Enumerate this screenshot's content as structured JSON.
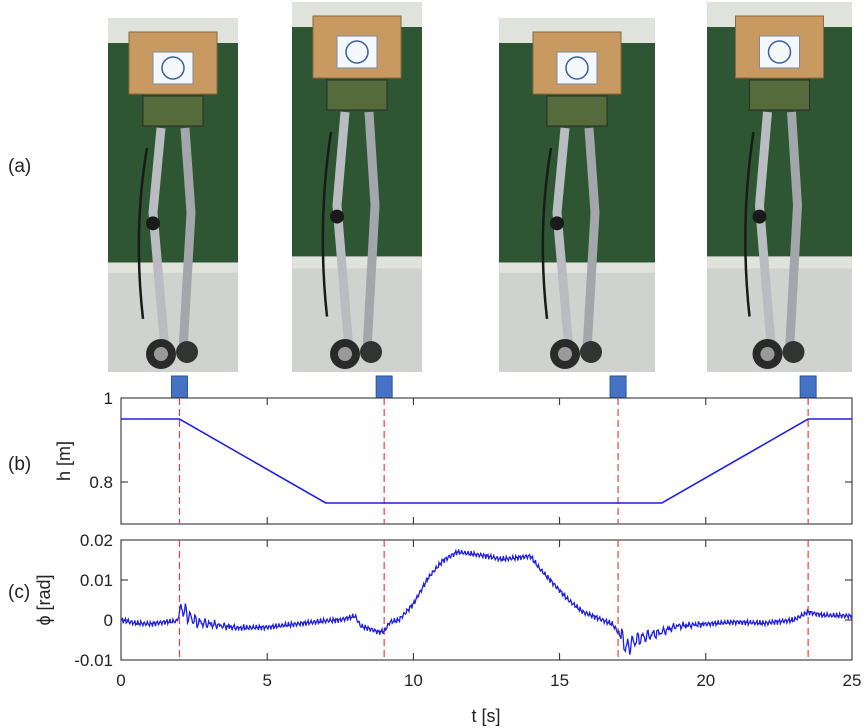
{
  "panel_labels": {
    "a": "(a)",
    "b": "(b)",
    "c": "(c)"
  },
  "photos": [
    {
      "name": "robot-photo-1"
    },
    {
      "name": "robot-photo-2"
    },
    {
      "name": "robot-photo-3"
    },
    {
      "name": "robot-photo-4"
    }
  ],
  "colors": {
    "line": "#1f1fe0",
    "marker": "#e8413a",
    "arrow": "#4472c4",
    "axis": "#222222"
  },
  "chart_data": [
    {
      "type": "line",
      "id": "height",
      "ylabel": "h [m]",
      "xlim": [
        0,
        25
      ],
      "ylim": [
        0.7,
        1.0
      ],
      "yticks": [
        0.8,
        1
      ],
      "ytick_labels": [
        "0.8",
        "1"
      ],
      "series": [
        {
          "x": [
            0,
            2,
            7,
            18.5,
            23.5,
            25
          ],
          "y": [
            0.95,
            0.95,
            0.75,
            0.75,
            0.95,
            0.95
          ]
        }
      ],
      "markers_x": [
        2,
        9,
        17,
        23.5
      ]
    },
    {
      "type": "line",
      "id": "phi",
      "ylabel": "ϕ [rad]",
      "xlabel": "t [s]",
      "xlim": [
        0,
        25
      ],
      "ylim": [
        -0.01,
        0.02
      ],
      "yticks": [
        -0.01,
        0,
        0.01,
        0.02
      ],
      "ytick_labels": [
        "-0.01",
        "0",
        "0.01",
        "0.02"
      ],
      "xticks": [
        0,
        5,
        10,
        15,
        20,
        25
      ],
      "xtick_labels": [
        "0",
        "5",
        "10",
        "15",
        "20",
        "25"
      ],
      "series": [
        {
          "x": [
            0,
            0.5,
            1.0,
            1.5,
            1.9,
            2.1,
            2.3,
            2.6,
            3.0,
            3.5,
            4.0,
            5.0,
            6.0,
            7.0,
            7.5,
            8.0,
            8.2,
            8.5,
            8.8,
            9.0,
            9.2,
            9.5,
            10.0,
            10.5,
            11.0,
            11.5,
            12.0,
            12.5,
            13.0,
            13.5,
            14.0,
            14.3,
            14.8,
            15.3,
            15.8,
            16.3,
            16.8,
            17.0,
            17.3,
            17.6,
            18.0,
            18.5,
            19.0,
            20.0,
            21.0,
            22.0,
            23.0,
            23.5,
            24.0,
            25.0
          ],
          "y": [
            0.0,
            -0.0008,
            -0.001,
            -0.0005,
            -0.0003,
            0.003,
            0.001,
            -0.0005,
            -0.001,
            -0.0015,
            -0.002,
            -0.0018,
            -0.001,
            -0.0002,
            0.0,
            0.001,
            -0.0015,
            -0.0022,
            -0.003,
            -0.0028,
            -0.0005,
            0.0,
            0.004,
            0.0105,
            0.0148,
            0.017,
            0.0165,
            0.016,
            0.0152,
            0.0155,
            0.016,
            0.013,
            0.009,
            0.005,
            0.002,
            0.0005,
            -0.001,
            -0.003,
            -0.007,
            -0.005,
            -0.004,
            -0.003,
            -0.0015,
            -0.001,
            -0.0005,
            -0.0008,
            0.0,
            0.002,
            0.0012,
            0.001
          ]
        }
      ],
      "markers_x": [
        2,
        9,
        17,
        23.5
      ]
    }
  ]
}
